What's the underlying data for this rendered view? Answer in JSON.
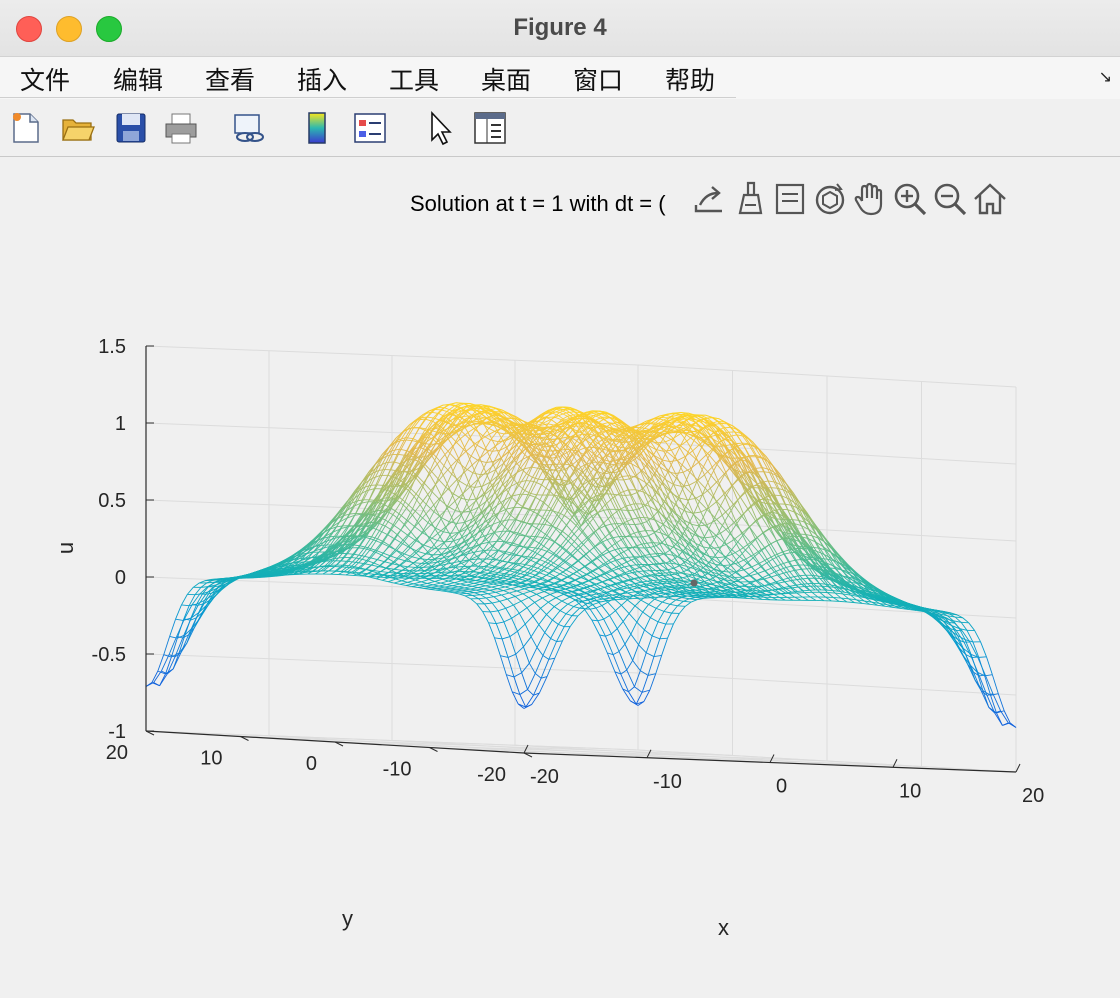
{
  "window": {
    "title": "Figure 4"
  },
  "menu": {
    "items": [
      "文件",
      "编辑",
      "查看",
      "插入",
      "工具",
      "桌面",
      "窗口",
      "帮助"
    ]
  },
  "toolbar": {
    "buttons": [
      {
        "icon": "new-figure-icon"
      },
      {
        "icon": "open-folder-icon"
      },
      {
        "icon": "save-disk-icon"
      },
      {
        "icon": "print-icon"
      },
      {
        "icon": "link-plot-icon"
      },
      {
        "icon": "colorbar-icon"
      },
      {
        "icon": "legend-icon"
      },
      {
        "icon": "edit-plot-pointer-icon"
      },
      {
        "icon": "property-inspector-icon"
      }
    ]
  },
  "axes_toolbar": {
    "buttons": [
      {
        "icon": "export-icon"
      },
      {
        "icon": "brush-icon"
      },
      {
        "icon": "data-tips-icon"
      },
      {
        "icon": "rotate-3d-icon"
      },
      {
        "icon": "pan-hand-icon"
      },
      {
        "icon": "zoom-in-icon"
      },
      {
        "icon": "zoom-out-icon"
      },
      {
        "icon": "home-icon"
      }
    ]
  },
  "chart_data": {
    "type": "surface",
    "title": "Solution at t = 1 with dt = (",
    "xlabel": "x",
    "ylabel": "y",
    "zlabel": "u",
    "xlim": [
      -20,
      20
    ],
    "ylim": [
      -20,
      20
    ],
    "zlim": [
      -1,
      1.5
    ],
    "xticks": [
      "-20",
      "-10",
      "0",
      "10",
      "20"
    ],
    "yticks": [
      "-20",
      "-10",
      "0",
      "10",
      "20"
    ],
    "zticks": [
      "1.5",
      "1",
      "0.5",
      "0",
      "-0.5",
      "-1"
    ],
    "grid": true,
    "colormap": "parula",
    "style": "mesh"
  }
}
